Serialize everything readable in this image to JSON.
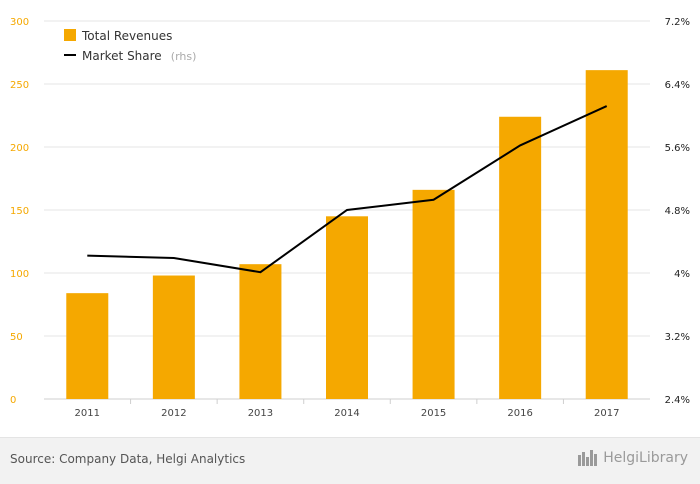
{
  "chart_data": {
    "type": "bar+line",
    "categories": [
      "2011",
      "2012",
      "2013",
      "2014",
      "2015",
      "2016",
      "2017"
    ],
    "series": [
      {
        "name": "Total Revenues",
        "type": "bar",
        "axis": "left",
        "values": [
          84,
          98,
          107,
          145,
          166,
          224,
          261
        ],
        "color": "#f5a800"
      },
      {
        "name": "Market Share",
        "name_note": "(rhs)",
        "type": "line",
        "axis": "right",
        "values": [
          4.22,
          4.19,
          4.01,
          4.8,
          4.93,
          5.62,
          6.12
        ],
        "color": "#000000"
      }
    ],
    "y_left": {
      "range": [
        0,
        300
      ],
      "ticks": [
        "0",
        "50",
        "100",
        "150",
        "200",
        "250",
        "300"
      ]
    },
    "y_right": {
      "range": [
        2.4,
        7.2
      ],
      "ticks": [
        "2.4%",
        "3.2%",
        "4%",
        "4.8%",
        "5.6%",
        "6.4%",
        "7.2%"
      ]
    },
    "grid": true,
    "legend": "top-left"
  },
  "footer": {
    "source": "Source: Company Data, Helgi Analytics",
    "brand": "HelgiLibrary"
  }
}
